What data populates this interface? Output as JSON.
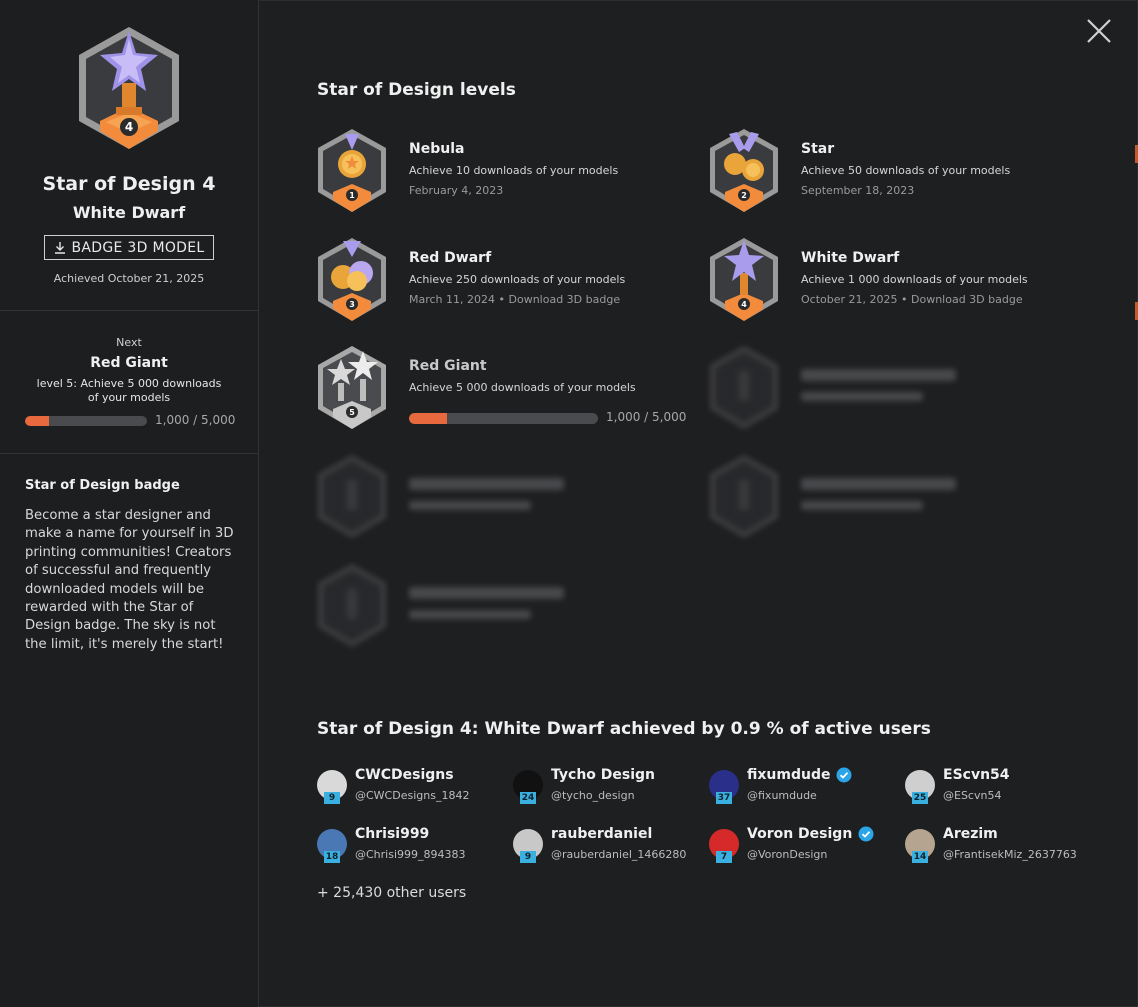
{
  "sidebar": {
    "badge_title": "Star of Design 4",
    "badge_subtitle": "White Dwarf",
    "download_button": "BADGE 3D MODEL",
    "achieved": "Achieved October 21, 2025",
    "next": {
      "label": "Next",
      "name": "Red Giant",
      "description": "level 5: Achieve 5 000 downloads of your models",
      "progress": 0.2,
      "count": "1,000 / 5,000"
    },
    "about": {
      "title": "Star of Design badge",
      "text": "Become a star designer and make a name for yourself in 3D printing communities! Creators of successful and frequently downloaded models will be rewarded with the Star of Design badge. The sky is not the limit, it's merely the start!"
    }
  },
  "levels_title": "Star of Design levels",
  "levels": [
    {
      "name": "Nebula",
      "description": "Achieve 10 downloads of your models",
      "date": "February 4, 2023"
    },
    {
      "name": "Star",
      "description": "Achieve 50 downloads of your models",
      "date": "September 18, 2023"
    },
    {
      "name": "Red Dwarf",
      "description": "Achieve 250 downloads of your models",
      "date": "March 11, 2024",
      "link": "Download 3D badge"
    },
    {
      "name": "White Dwarf",
      "description": "Achieve 1 000 downloads of your models",
      "date": "October 21, 2025",
      "link": "Download 3D badge"
    },
    {
      "name": "Red Giant",
      "description": "Achieve 5 000 downloads of your models",
      "progress": 0.2,
      "count": "1,000 / 5,000"
    }
  ],
  "separator": " • ",
  "achieved_title": "Star of Design 4: White Dwarf achieved by 0.9 % of active users",
  "users": [
    {
      "name": "CWCDesigns",
      "handle": "@CWCDesigns_1842",
      "level": "9",
      "verified": false
    },
    {
      "name": "Tycho Design",
      "handle": "@tycho_design",
      "level": "24",
      "verified": false
    },
    {
      "name": "fixumdude",
      "handle": "@fixumdude",
      "level": "37",
      "verified": true
    },
    {
      "name": "EScvn54",
      "handle": "@EScvn54",
      "level": "25",
      "verified": false
    },
    {
      "name": "Chrisi999",
      "handle": "@Chrisi999_894383",
      "level": "18",
      "verified": false
    },
    {
      "name": "rauberdaniel",
      "handle": "@rauberdaniel_1466280",
      "level": "9",
      "verified": false
    },
    {
      "name": "Voron Design",
      "handle": "@VoronDesign",
      "level": "7",
      "verified": true
    },
    {
      "name": "Arezim",
      "handle": "@FrantisekMiz_2637763",
      "level": "14",
      "verified": false
    }
  ],
  "others": "+ 25,430 other users",
  "colors": {
    "accent": "#e8693d",
    "level_badge": "#3ab0e0",
    "verified": "#2aa5e8"
  }
}
